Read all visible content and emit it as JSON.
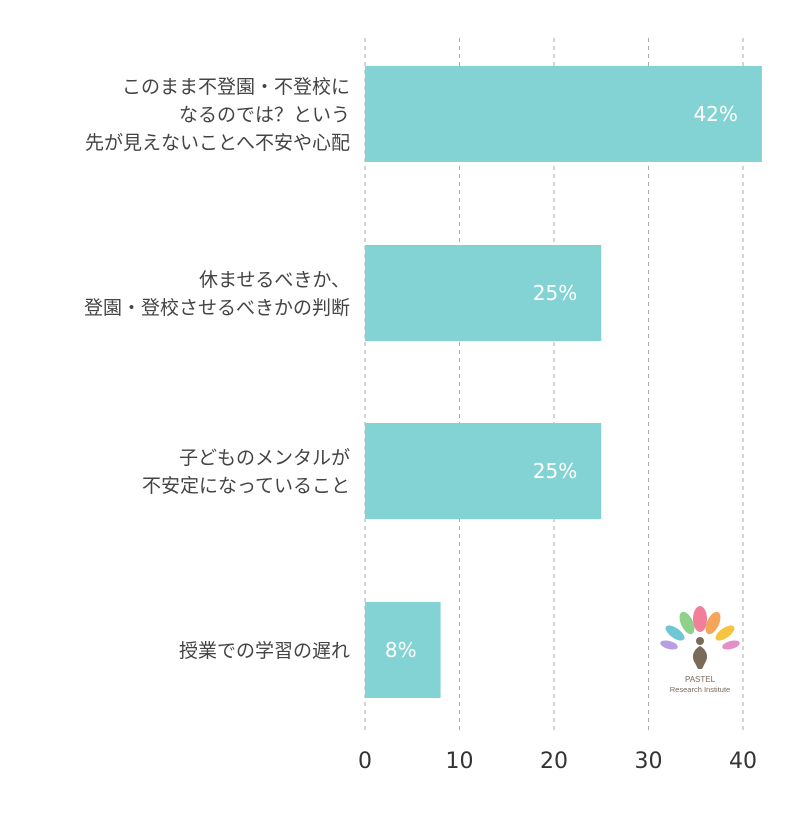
{
  "chart_data": {
    "type": "bar",
    "orientation": "horizontal",
    "categories": [
      [
        "このまま不登園・不登校に",
        "なるのでは？という",
        "先が見えないことへ不安や心配"
      ],
      [
        "休ませるべきか、",
        "登園・登校させるべきかの判断"
      ],
      [
        "子どものメンタルが",
        "不安定になっていること"
      ],
      [
        "授業での学習の遅れ"
      ]
    ],
    "values": [
      42,
      25,
      25,
      8
    ],
    "data_labels": [
      "42%",
      "25%",
      "25%",
      "8%"
    ],
    "xlim": [
      0,
      42
    ],
    "xticks": [
      0,
      10,
      20,
      30,
      40
    ],
    "xtick_labels": [
      "0",
      "10",
      "20",
      "30",
      "40"
    ],
    "grid": "vertical dashed",
    "title": "",
    "xlabel": "",
    "ylabel": "",
    "bar_color": "#84d3d4",
    "grid_color": "#aaaaaa"
  },
  "logo": {
    "line1": "PASTEL",
    "line2": "Research Institute"
  }
}
